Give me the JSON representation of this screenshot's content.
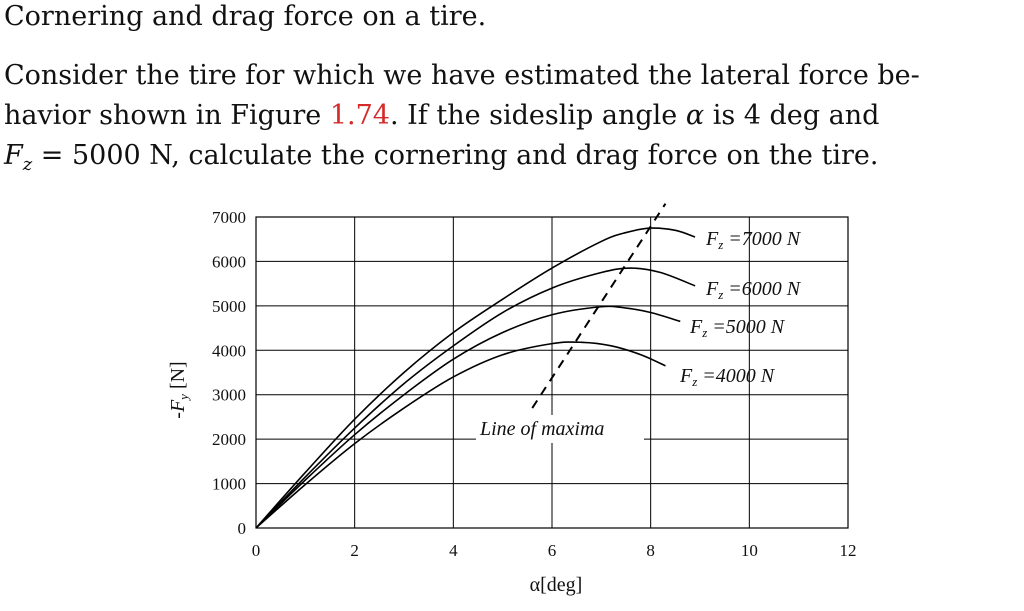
{
  "heading": "Cornering and drag force on a tire.",
  "paragraph": {
    "line1": "Consider the tire for which we have estimated the lateral force be-",
    "line2_pre": "havior shown in Figure ",
    "line2_ref": "1.74",
    "line2_mid": ". If the sideslip angle ",
    "alpha_symbol": "α",
    "line2_post": " is 4 deg and",
    "fz_symbol": "F",
    "fz_subscript": "z",
    "line3_post": " = 5000 N, calculate the cornering and drag force on the tire."
  },
  "colors": {
    "text": "#111111",
    "reference": "#d42a2a",
    "grid": "#000000"
  },
  "chart_data": {
    "type": "line",
    "xlabel": "α[deg]",
    "ylabel": "-F_y [N]",
    "ylabel_main": "-F",
    "ylabel_sub": "y",
    "ylabel_unit": " [N]",
    "xlim": [
      0,
      12
    ],
    "ylim": [
      0,
      7000
    ],
    "x_ticks": [
      "0",
      "2",
      "4",
      "6",
      "8",
      "10",
      "12"
    ],
    "y_ticks": [
      "0",
      "1000",
      "2000",
      "3000",
      "4000",
      "5000",
      "6000",
      "7000"
    ],
    "grid": true,
    "series": [
      {
        "name": "Fz =7000 N",
        "label_sym": "F",
        "label_sub": "z",
        "label_rest": " =7000 N",
        "x": [
          0,
          1,
          2,
          3,
          4,
          5,
          6,
          7,
          7.5,
          8,
          8.5,
          8.9
        ],
        "y": [
          0,
          1250,
          2450,
          3500,
          4400,
          5150,
          5850,
          6450,
          6650,
          6750,
          6700,
          6550
        ]
      },
      {
        "name": "Fz =6000 N",
        "label_sym": "F",
        "label_sub": "z",
        "label_rest": " =6000 N",
        "x": [
          0,
          1,
          2,
          3,
          4,
          5,
          6,
          7,
          7.6,
          8.2,
          8.9
        ],
        "y": [
          0,
          1150,
          2250,
          3250,
          4100,
          4850,
          5400,
          5750,
          5850,
          5750,
          5450
        ]
      },
      {
        "name": "Fz =5000 N",
        "label_sym": "F",
        "label_sub": "z",
        "label_rest": " =5000 N",
        "x": [
          0,
          1,
          2,
          3,
          4,
          5,
          6,
          7,
          7.5,
          8,
          8.6
        ],
        "y": [
          0,
          1080,
          2100,
          3000,
          3800,
          4400,
          4800,
          4980,
          4950,
          4850,
          4650
        ]
      },
      {
        "name": "Fz =4000 N",
        "label_sym": "F",
        "label_sub": "z",
        "label_rest": " =4000 N",
        "x": [
          0,
          1,
          2,
          3,
          4,
          5,
          6,
          6.6,
          7.2,
          7.8,
          8.3
        ],
        "y": [
          0,
          980,
          1900,
          2700,
          3400,
          3900,
          4150,
          4180,
          4100,
          3900,
          3650
        ]
      }
    ],
    "line_of_maxima": {
      "label": "Line of maxima",
      "x": [
        5.6,
        8.3
      ],
      "y": [
        2700,
        7300
      ]
    }
  }
}
